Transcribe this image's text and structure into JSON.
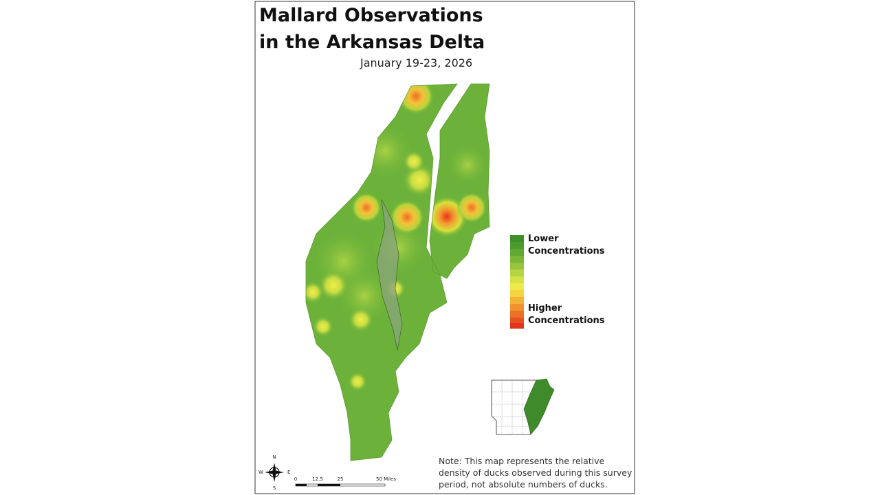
{
  "title": [
    "Mallard Observations",
    "in the Arkansas Delta"
  ],
  "subtitle": "January 19-23, 2026",
  "legend": {
    "low": [
      "Lower",
      "Concentrations"
    ],
    "high": [
      "Higher",
      "Concentrations"
    ]
  },
  "note": [
    "Note: This map represents the relative",
    "density of ducks observed during this survey",
    "period, not absolute numbers of ducks."
  ],
  "scale_bar": [
    "0",
    "12.5",
    "25",
    "50 Miles"
  ],
  "compass": {
    "north": "N",
    "east": "E",
    "south": "S",
    "west": "W"
  }
}
